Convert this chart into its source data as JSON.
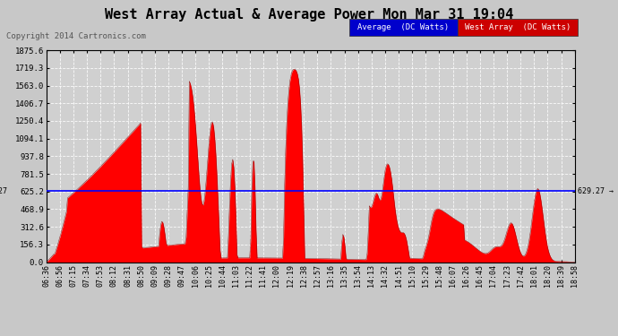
{
  "title": "West Array Actual & Average Power Mon Mar 31 19:04",
  "copyright": "Copyright 2014 Cartronics.com",
  "average_value": 629.27,
  "y_max": 1875.6,
  "y_min": 0.0,
  "y_ticks": [
    0.0,
    156.3,
    312.6,
    468.9,
    625.2,
    781.5,
    937.8,
    1094.1,
    1250.4,
    1406.7,
    1563.0,
    1719.3,
    1875.6
  ],
  "y_tick_labels": [
    "0.0",
    "156.3",
    "312.6",
    "468.9",
    "625.2",
    "781.5",
    "937.8",
    "1094.1",
    "1250.4",
    "1406.7",
    "1563.0",
    "1719.3",
    "1875.6"
  ],
  "background_color": "#c8c8c8",
  "plot_background": "#d0d0d0",
  "fill_color": "#ff0000",
  "line_color": "#cc0000",
  "avg_line_color": "#0000ff",
  "title_color": "#000000",
  "grid_color": "#aaaaaa",
  "x_labels": [
    "06:36",
    "06:56",
    "07:15",
    "07:34",
    "07:53",
    "08:12",
    "08:31",
    "08:50",
    "09:09",
    "09:28",
    "09:47",
    "10:06",
    "10:25",
    "10:44",
    "11:03",
    "11:22",
    "11:41",
    "12:00",
    "12:19",
    "12:38",
    "12:57",
    "13:16",
    "13:35",
    "13:54",
    "14:13",
    "14:32",
    "14:51",
    "15:10",
    "15:29",
    "15:48",
    "16:07",
    "16:26",
    "16:45",
    "17:04",
    "17:23",
    "17:42",
    "18:01",
    "18:20",
    "18:39",
    "18:58"
  ],
  "legend_avg_bg": "#0000cc",
  "legend_west_bg": "#cc0000",
  "legend_text": "#ffffff"
}
